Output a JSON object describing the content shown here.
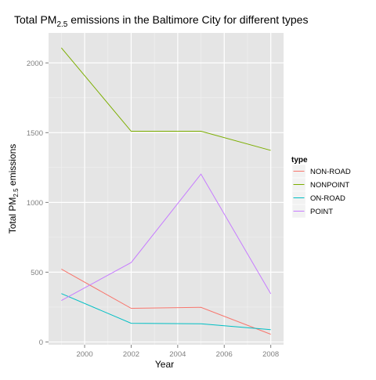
{
  "chart_data": {
    "type": "line",
    "title_main": "Total PM",
    "title_sub": "2.5",
    "title_rest": " emissions in the Baltimore City for different types",
    "xlabel": "Year",
    "ylabel_main": "Total PM",
    "ylabel_sub": "2.5",
    "ylabel_rest": " emissions",
    "x": [
      1999,
      2002,
      2005,
      2008
    ],
    "xlim": [
      1998.45,
      2008.55
    ],
    "ylim": [
      -20,
      2215
    ],
    "xticks": [
      2000,
      2002,
      2004,
      2006,
      2008
    ],
    "yticks": [
      0,
      500,
      1000,
      1500,
      2000
    ],
    "legend": {
      "title": "type",
      "position": "right"
    },
    "series": [
      {
        "name": "NON-ROAD",
        "color": "#F8766D",
        "values": [
          522,
          241,
          248,
          55
        ]
      },
      {
        "name": "NONPOINT",
        "color": "#7CAE00",
        "values": [
          2108,
          1510,
          1510,
          1373
        ]
      },
      {
        "name": "ON-ROAD",
        "color": "#00BFC4",
        "values": [
          347,
          134,
          130,
          88
        ]
      },
      {
        "name": "POINT",
        "color": "#C77CFF",
        "values": [
          297,
          569,
          1203,
          345
        ]
      }
    ]
  }
}
